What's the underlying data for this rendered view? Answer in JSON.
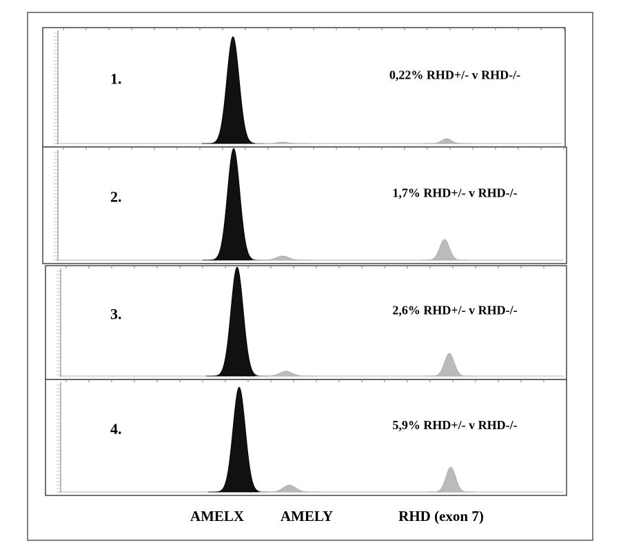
{
  "panels": [
    {
      "label": "1.",
      "annotation": "0,22% RHD+/- v RHD-/-"
    },
    {
      "label": "2.",
      "annotation": "1,7% RHD+/- v RHD-/-"
    },
    {
      "label": "3.",
      "annotation": "2,6% RHD+/- v RHD-/-"
    },
    {
      "label": "4.",
      "annotation": "5,9% RHD+/- v RHD-/-"
    }
  ],
  "peak_labels": [
    "AMELX",
    "AMELY",
    "RHD (exon 7)"
  ]
}
